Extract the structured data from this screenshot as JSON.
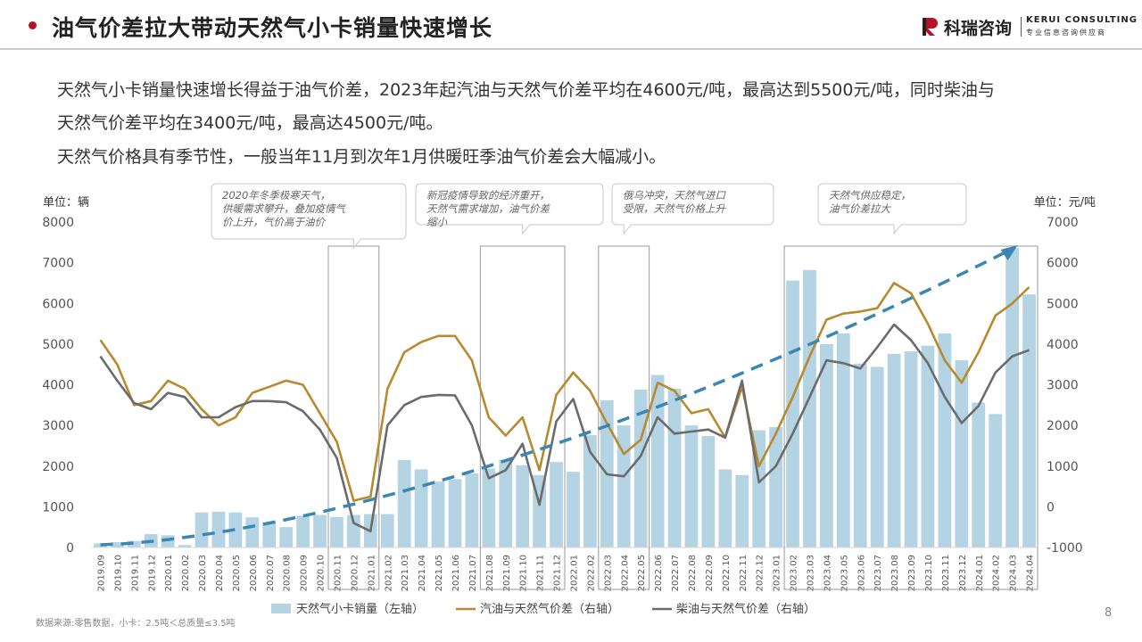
{
  "header": {
    "title": "油气价差拉大带动天然气小卡销量快速增长"
  },
  "logo": {
    "cn": "科瑞咨询",
    "en": "KERUI CONSULTING",
    "en_sub": "专业信息咨询供应商"
  },
  "paragraphs": [
    "天然气小卡销量快速增长得益于油气价差，2023年起汽油与天然气价差平均在4600元/吨，最高达到5500元/吨，同时柴油与",
    "天然气价差平均在3400元/吨，最高达4500元/吨。",
    "天然气价格具有季节性，一般当年11月到次年1月供暖旺季油气价差会大幅减小。"
  ],
  "footnote": "数据来源:零售数据，小卡：2.5吨＜总质量≤3.5吨",
  "page_number": "8",
  "colors": {
    "accent": "#b2152a",
    "bar": "#b4d3e3",
    "gasoline_line": "#b88a30",
    "diesel_line": "#6b6b6b",
    "trend_arrow": "#3c86b4",
    "callout_border": "#c8c8c8"
  },
  "chart_data": {
    "type": "bar+line",
    "left_unit_label": "单位：辆",
    "right_unit_label": "单位：元/吨",
    "left_axis": {
      "min": 0,
      "max": 8000,
      "ticks": [
        0,
        1000,
        2000,
        3000,
        4000,
        5000,
        6000,
        7000,
        8000
      ]
    },
    "right_axis": {
      "min": -1000,
      "max": 7000,
      "ticks": [
        -1000,
        0,
        1000,
        2000,
        3000,
        4000,
        5000,
        6000,
        7000
      ]
    },
    "categories": [
      "2019.09",
      "2019.10",
      "2019.11",
      "2019.12",
      "2020.01",
      "2020.02",
      "2020.03",
      "2020.04",
      "2020.05",
      "2020.06",
      "2020.07",
      "2020.08",
      "2020.09",
      "2020.10",
      "2020.11",
      "2020.12",
      "2021.01",
      "2021.02",
      "2021.03",
      "2021.04",
      "2021.05",
      "2021.06",
      "2021.07",
      "2021.08",
      "2021.09",
      "2021.10",
      "2021.11",
      "2021.12",
      "2022.01",
      "2022.02",
      "2022.03",
      "2022.04",
      "2022.05",
      "2022.06",
      "2022.07",
      "2022.08",
      "2022.09",
      "2022.10",
      "2022.11",
      "2022.12",
      "2023.01",
      "2023.02",
      "2023.03",
      "2023.04",
      "2023.05",
      "2023.06",
      "2023.07",
      "2023.08",
      "2023.09",
      "2023.10",
      "2023.11",
      "2023.12",
      "2024.01",
      "2024.02",
      "2024.03",
      "2024.04"
    ],
    "series": [
      {
        "name": "天然气小卡销量（左轴）",
        "kind": "bar",
        "axis": "left",
        "values": [
          100,
          130,
          160,
          330,
          300,
          60,
          860,
          880,
          860,
          740,
          620,
          500,
          780,
          800,
          750,
          800,
          820,
          820,
          2150,
          1920,
          1620,
          1680,
          1820,
          1940,
          2160,
          2020,
          1780,
          2100,
          1860,
          2760,
          3620,
          3000,
          3880,
          4240,
          3900,
          3000,
          2740,
          1920,
          1780,
          2880,
          2960,
          6560,
          6820,
          5000,
          5260,
          4520,
          4440,
          4760,
          4820,
          4960,
          5260,
          4600,
          3560,
          3280,
          7360,
          6220
        ]
      },
      {
        "name": "汽油与天然气价差（右轴）",
        "kind": "line",
        "axis": "right",
        "values": [
          4100,
          3500,
          2500,
          2600,
          3100,
          2900,
          2400,
          2000,
          2200,
          2800,
          2950,
          3100,
          3000,
          2300,
          1600,
          150,
          250,
          2900,
          3800,
          4050,
          4200,
          4200,
          3600,
          2200,
          1750,
          2200,
          900,
          2750,
          3300,
          2850,
          2050,
          1300,
          1650,
          3050,
          2850,
          2300,
          2400,
          1700,
          2950,
          1000,
          1800,
          2700,
          3700,
          4600,
          4750,
          4800,
          4880,
          5500,
          5250,
          4500,
          3600,
          3050,
          3800,
          4700,
          5000,
          5400
        ]
      },
      {
        "name": "柴油与天然气价差（右轴）",
        "kind": "line",
        "axis": "right",
        "values": [
          3700,
          3100,
          2550,
          2400,
          2800,
          2700,
          2200,
          2200,
          2450,
          2600,
          2600,
          2570,
          2350,
          1900,
          1200,
          -400,
          -600,
          2000,
          2500,
          2700,
          2750,
          2740,
          2000,
          700,
          900,
          1550,
          50,
          2100,
          2650,
          1350,
          800,
          750,
          1250,
          2200,
          1800,
          1850,
          1900,
          1700,
          3100,
          600,
          1000,
          1800,
          2700,
          3600,
          3530,
          3400,
          3920,
          4480,
          4100,
          3530,
          2700,
          2060,
          2480,
          3300,
          3700,
          3850
        ]
      }
    ],
    "highlight_ranges": [
      {
        "from": "2020.11",
        "to": "2021.01"
      },
      {
        "from": "2021.08",
        "to": "2021.12"
      },
      {
        "from": "2022.03",
        "to": "2022.05"
      },
      {
        "from": "2023.02",
        "to": "2024.04"
      }
    ],
    "annotations": [
      {
        "text": "2020年冬季极寒天气，供暖需求攀升，叠加疫情气价上升，气价高于油价",
        "anchor": "2020.12"
      },
      {
        "text": "新冠疫情导致的经济重开，天然气需求增加，油气价差缩小",
        "anchor": "2021.10"
      },
      {
        "text": "俄乌冲突，天然气进口受限，天然气价格上升",
        "anchor": "2022.04"
      },
      {
        "text": "天然气供应稳定，油气价差拉大",
        "anchor": "2023.08"
      }
    ],
    "trend": {
      "from": "2019.09",
      "to": "2024.03",
      "style": "dashed-arrow"
    },
    "legend_position": "bottom-center"
  }
}
